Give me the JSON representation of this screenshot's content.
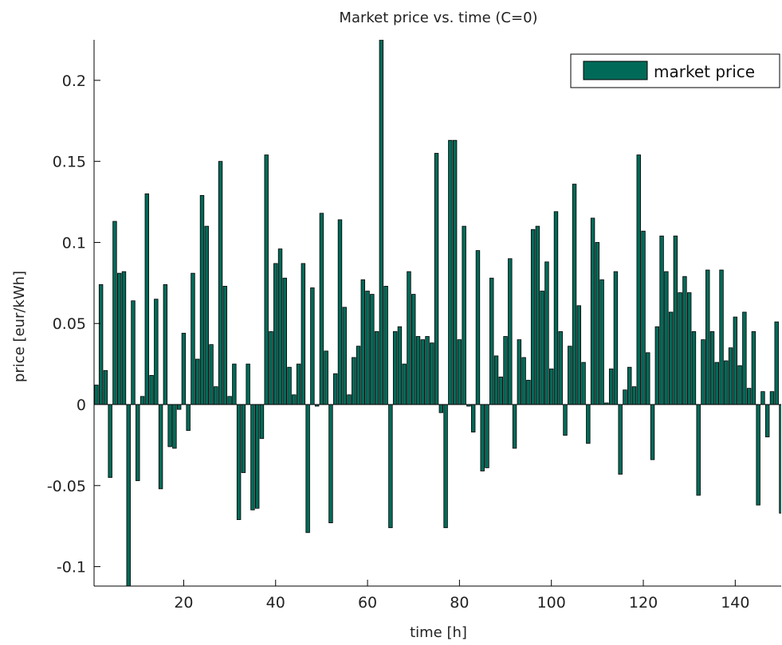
{
  "chart_data": {
    "type": "bar",
    "title": "Market price vs. time (C=0)",
    "xlabel": "time [h]",
    "ylabel": "price [eur/kWh]",
    "xlim": [
      0.5,
      150
    ],
    "ylim": [
      -0.112,
      0.225
    ],
    "xticks": [
      20,
      40,
      60,
      80,
      100,
      120,
      140
    ],
    "xtick_labels": [
      "20",
      "40",
      "60",
      "80",
      "100",
      "120",
      "140"
    ],
    "yticks": [
      -0.1,
      -0.05,
      0,
      0.05,
      0.1,
      0.15,
      0.2
    ],
    "ytick_labels": [
      "-0.1",
      "-0.05",
      "0",
      "0.05",
      "0.1",
      "0.15",
      "0.2"
    ],
    "grid": false,
    "legend_position": "top-right",
    "bar_color": "#006a58",
    "series": [
      {
        "name": "market price",
        "x": [
          1,
          2,
          3,
          4,
          5,
          6,
          7,
          8,
          9,
          10,
          11,
          12,
          13,
          14,
          15,
          16,
          17,
          18,
          19,
          20,
          21,
          22,
          23,
          24,
          25,
          26,
          27,
          28,
          29,
          30,
          31,
          32,
          33,
          34,
          35,
          36,
          37,
          38,
          39,
          40,
          41,
          42,
          43,
          44,
          45,
          46,
          47,
          48,
          49,
          50,
          51,
          52,
          53,
          54,
          55,
          56,
          57,
          58,
          59,
          60,
          61,
          62,
          63,
          64,
          65,
          66,
          67,
          68,
          69,
          70,
          71,
          72,
          73,
          74,
          75,
          76,
          77,
          78,
          79,
          80,
          81,
          82,
          83,
          84,
          85,
          86,
          87,
          88,
          89,
          90,
          91,
          92,
          93,
          94,
          95,
          96,
          97,
          98,
          99,
          100,
          101,
          102,
          103,
          104,
          105,
          106,
          107,
          108,
          109,
          110,
          111,
          112,
          113,
          114,
          115,
          116,
          117,
          118,
          119,
          120,
          121,
          122,
          123,
          124,
          125,
          126,
          127,
          128,
          129,
          130,
          131,
          132,
          133,
          134,
          135,
          136,
          137,
          138,
          139,
          140,
          141,
          142,
          143,
          144,
          145,
          146,
          147,
          148,
          149,
          150
        ],
        "values": [
          0.012,
          0.074,
          0.021,
          -0.045,
          0.113,
          0.081,
          0.082,
          -0.112,
          0.064,
          -0.047,
          0.005,
          0.13,
          0.018,
          0.065,
          -0.052,
          0.074,
          -0.026,
          -0.027,
          -0.003,
          0.044,
          -0.016,
          0.081,
          0.028,
          0.129,
          0.11,
          0.037,
          0.011,
          0.15,
          0.073,
          0.005,
          0.025,
          -0.071,
          -0.042,
          0.025,
          -0.065,
          -0.064,
          -0.021,
          0.154,
          0.045,
          0.087,
          0.096,
          0.078,
          0.023,
          0.006,
          0.025,
          0.087,
          -0.079,
          0.072,
          -0.001,
          0.118,
          0.033,
          -0.073,
          0.019,
          0.114,
          0.06,
          0.006,
          0.029,
          0.036,
          0.077,
          0.07,
          0.068,
          0.045,
          0.225,
          0.073,
          -0.076,
          0.045,
          0.048,
          0.025,
          0.082,
          0.068,
          0.042,
          0.04,
          0.042,
          0.038,
          0.155,
          -0.005,
          -0.076,
          0.163,
          0.163,
          0.04,
          0.11,
          -0.001,
          -0.017,
          0.095,
          -0.041,
          -0.039,
          0.078,
          0.03,
          0.017,
          0.042,
          0.09,
          -0.027,
          0.04,
          0.029,
          0.015,
          0.108,
          0.11,
          0.07,
          0.088,
          0.022,
          0.119,
          0.045,
          -0.019,
          0.036,
          0.136,
          0.061,
          0.026,
          -0.024,
          0.115,
          0.1,
          0.077,
          0.001,
          0.022,
          0.082,
          -0.043,
          0.009,
          0.023,
          0.011,
          0.154,
          0.107,
          0.032,
          -0.034,
          0.048,
          0.104,
          0.082,
          0.057,
          0.104,
          0.069,
          0.079,
          0.069,
          0.045,
          -0.056,
          0.04,
          0.083,
          0.045,
          0.026,
          0.083,
          0.027,
          0.035,
          0.054,
          0.024,
          0.057,
          0.01,
          0.045,
          -0.062,
          0.008,
          -0.02,
          0.008,
          0.051,
          -0.067
        ]
      }
    ]
  }
}
